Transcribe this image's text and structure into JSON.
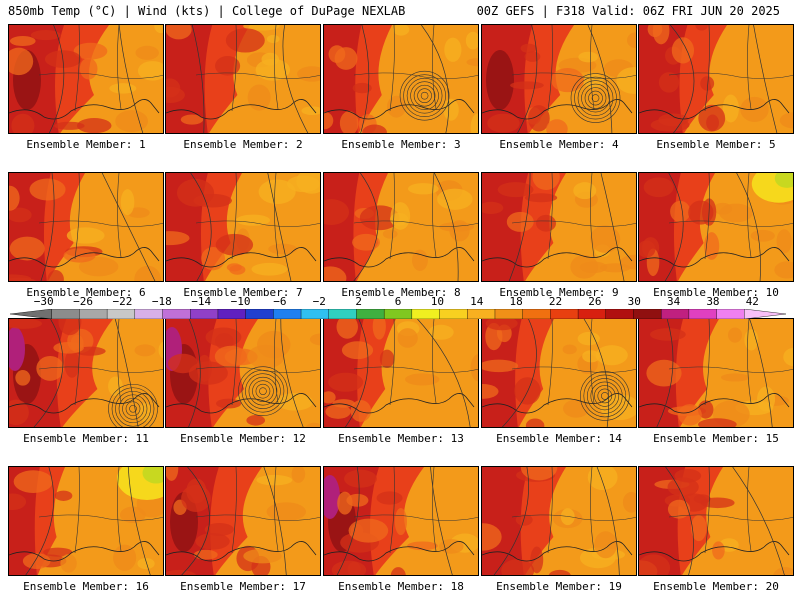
{
  "header": {
    "left": "850mb Temp (°C) | Wind (kts) | College of DuPage NEXLAB",
    "right": "00Z GEFS | F318 Valid: 06Z FRI JUN 20 2025"
  },
  "members": [
    {
      "label": "Ensemble Member: 1",
      "hot": 0.75,
      "cool": 0.05,
      "low": false,
      "purple": false
    },
    {
      "label": "Ensemble Member: 2",
      "hot": 0.55,
      "cool": 0.05,
      "low": false,
      "purple": false
    },
    {
      "label": "Ensemble Member: 3",
      "hot": 0.35,
      "cool": 0.1,
      "low": true,
      "purple": false
    },
    {
      "label": "Ensemble Member: 4",
      "hot": 0.65,
      "cool": 0.05,
      "low": true,
      "purple": false
    },
    {
      "label": "Ensemble Member: 5",
      "hot": 0.6,
      "cool": 0.05,
      "low": false,
      "purple": false
    },
    {
      "label": "Ensemble Member: 6",
      "hot": 0.45,
      "cool": 0.1,
      "low": false,
      "purple": false
    },
    {
      "label": "Ensemble Member: 7",
      "hot": 0.45,
      "cool": 0.05,
      "low": false,
      "purple": false
    },
    {
      "label": "Ensemble Member: 8",
      "hot": 0.3,
      "cool": 0.05,
      "low": false,
      "purple": false
    },
    {
      "label": "Ensemble Member: 9",
      "hot": 0.55,
      "cool": 0.05,
      "low": false,
      "purple": false
    },
    {
      "label": "Ensemble Member: 10",
      "hot": 0.45,
      "cool": 0.25,
      "low": false,
      "purple": false
    },
    {
      "label": "Ensemble Member: 11",
      "hot": 0.8,
      "cool": 0.05,
      "low": true,
      "purple": true
    },
    {
      "label": "Ensemble Member: 12",
      "hot": 0.65,
      "cool": 0.05,
      "low": true,
      "purple": true
    },
    {
      "label": "Ensemble Member: 13",
      "hot": 0.4,
      "cool": 0.05,
      "low": false,
      "purple": false
    },
    {
      "label": "Ensemble Member: 14",
      "hot": 0.4,
      "cool": 0.05,
      "low": true,
      "purple": false
    },
    {
      "label": "Ensemble Member: 15",
      "hot": 0.5,
      "cool": 0.05,
      "low": false,
      "purple": false
    },
    {
      "label": "Ensemble Member: 16",
      "hot": 0.2,
      "cool": 0.3,
      "low": false,
      "purple": false
    },
    {
      "label": "Ensemble Member: 17",
      "hot": 0.7,
      "cool": 0.05,
      "low": false,
      "purple": false
    },
    {
      "label": "Ensemble Member: 18",
      "hot": 0.75,
      "cool": 0.05,
      "low": false,
      "purple": true
    },
    {
      "label": "Ensemble Member: 19",
      "hot": 0.55,
      "cool": 0.05,
      "low": false,
      "purple": false
    },
    {
      "label": "Ensemble Member: 20",
      "hot": 0.55,
      "cool": 0.05,
      "low": false,
      "purple": false
    }
  ],
  "colorbar": {
    "labels": [
      "−30",
      "−26",
      "−22",
      "−18",
      "−14",
      "−10",
      "−6",
      "−2",
      "2",
      "6",
      "10",
      "14",
      "18",
      "22",
      "26",
      "30",
      "34",
      "38",
      "42"
    ],
    "colors": [
      "#707070",
      "#8c8c8c",
      "#a8a8a8",
      "#c8c8c8",
      "#d8b0e8",
      "#c070d8",
      "#9040c8",
      "#6020c0",
      "#2040d0",
      "#2080f0",
      "#30c0f0",
      "#30d0c0",
      "#40b040",
      "#80c820",
      "#f0f020",
      "#f8d020",
      "#f8b020",
      "#f09018",
      "#f07010",
      "#e84010",
      "#d82010",
      "#b01010",
      "#901010",
      "#c02080",
      "#e040c0",
      "#f080f0",
      "#f8c0f8"
    ],
    "minValue": -32,
    "maxValue": 44
  }
}
